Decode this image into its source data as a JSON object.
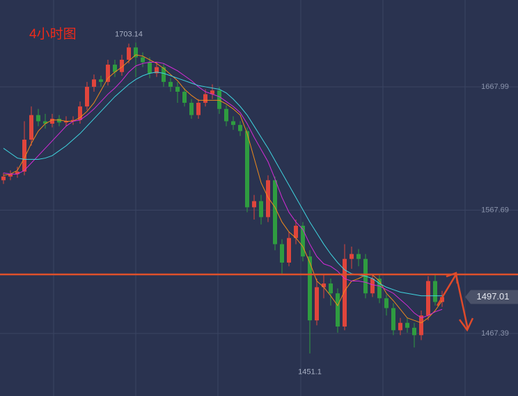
{
  "chart_data": {
    "type": "candlestick",
    "title": "4小时图",
    "ylim": [
      1416.5,
      1738.6
    ],
    "yticks": [
      1467.39,
      1567.69,
      1667.99
    ],
    "grid": true,
    "up_color": "#e0453c",
    "down_color": "#2f9c40",
    "candles": [
      [
        1592,
        1598,
        1589,
        1595
      ],
      [
        1595,
        1600,
        1592,
        1597
      ],
      [
        1597,
        1603,
        1594,
        1599
      ],
      [
        1599,
        1640,
        1596,
        1625
      ],
      [
        1625,
        1652,
        1620,
        1645
      ],
      [
        1645,
        1650,
        1636,
        1640
      ],
      [
        1640,
        1646,
        1634,
        1638
      ],
      [
        1638,
        1646,
        1635,
        1642
      ],
      [
        1642,
        1645,
        1636,
        1639
      ],
      [
        1639,
        1644,
        1636,
        1640
      ],
      [
        1640,
        1644,
        1637,
        1641
      ],
      [
        1641,
        1656,
        1638,
        1652
      ],
      [
        1652,
        1672,
        1649,
        1668
      ],
      [
        1668,
        1678,
        1664,
        1674
      ],
      [
        1674,
        1677,
        1668,
        1672
      ],
      [
        1672,
        1690,
        1669,
        1686
      ],
      [
        1686,
        1690,
        1676,
        1680
      ],
      [
        1680,
        1694,
        1677,
        1690
      ],
      [
        1690,
        1703.14,
        1687,
        1700
      ],
      [
        1700,
        1704,
        1676,
        1692
      ],
      [
        1692,
        1696,
        1684,
        1688
      ],
      [
        1688,
        1692,
        1675,
        1679
      ],
      [
        1679,
        1688,
        1676,
        1684
      ],
      [
        1684,
        1687,
        1668,
        1672
      ],
      [
        1672,
        1675,
        1664,
        1668
      ],
      [
        1668,
        1672,
        1655,
        1664
      ],
      [
        1664,
        1667,
        1652,
        1655
      ],
      [
        1655,
        1658,
        1642,
        1645
      ],
      [
        1645,
        1658,
        1642,
        1655
      ],
      [
        1655,
        1666,
        1652,
        1662
      ],
      [
        1662,
        1670,
        1658,
        1665
      ],
      [
        1665,
        1668,
        1646,
        1650
      ],
      [
        1650,
        1653,
        1636,
        1640
      ],
      [
        1640,
        1644,
        1633,
        1637
      ],
      [
        1637,
        1640,
        1628,
        1632
      ],
      [
        1632,
        1635,
        1566,
        1570
      ],
      [
        1570,
        1580,
        1560,
        1575
      ],
      [
        1575,
        1580,
        1556,
        1562
      ],
      [
        1562,
        1596,
        1558,
        1592
      ],
      [
        1592,
        1595,
        1535,
        1540
      ],
      [
        1540,
        1544,
        1515,
        1525
      ],
      [
        1525,
        1550,
        1522,
        1545
      ],
      [
        1545,
        1560,
        1540,
        1555
      ],
      [
        1555,
        1558,
        1526,
        1530
      ],
      [
        1530,
        1535,
        1451.1,
        1478
      ],
      [
        1478,
        1512,
        1474,
        1505
      ],
      [
        1505,
        1515,
        1496,
        1508
      ],
      [
        1508,
        1512,
        1490,
        1500
      ],
      [
        1500,
        1504,
        1468,
        1473
      ],
      [
        1473,
        1540,
        1470,
        1528
      ],
      [
        1528,
        1538,
        1520,
        1532
      ],
      [
        1532,
        1536,
        1522,
        1528
      ],
      [
        1528,
        1532,
        1496,
        1500
      ],
      [
        1500,
        1516,
        1497,
        1512
      ],
      [
        1512,
        1515,
        1492,
        1496
      ],
      [
        1496,
        1499,
        1482,
        1488
      ],
      [
        1488,
        1492,
        1466,
        1470
      ],
      [
        1470,
        1480,
        1466,
        1476
      ],
      [
        1476,
        1480,
        1468,
        1472
      ],
      [
        1472,
        1476,
        1456,
        1466
      ],
      [
        1466,
        1486,
        1462,
        1482
      ],
      [
        1482,
        1514,
        1478,
        1510
      ],
      [
        1510,
        1516,
        1490,
        1493
      ],
      [
        1493,
        1502,
        1489,
        1497.01
      ]
    ],
    "series": [
      {
        "color": "#f08a1c",
        "values": [
          1596,
          1597,
          1600,
          1610,
          1622,
          1632,
          1638,
          1641,
          1641,
          1640,
          1640,
          1643,
          1648,
          1655,
          1665,
          1675,
          1680,
          1684,
          1689,
          1694,
          1693,
          1690,
          1687,
          1683,
          1678,
          1673,
          1666,
          1661,
          1657,
          1657,
          1657,
          1657,
          1654,
          1650,
          1645,
          1630,
          1610,
          1590,
          1578,
          1570,
          1558,
          1550,
          1545,
          1538,
          1525,
          1510,
          1505,
          1498,
          1490,
          1502,
          1510,
          1512,
          1515,
          1515,
          1510,
          1500,
          1494,
          1487,
          1480,
          1478,
          1476,
          1480,
          1486,
          1494
        ]
      },
      {
        "color": "#d62bd8",
        "values": [
          1598,
          1597,
          1597,
          1600,
          1606,
          1612,
          1618,
          1624,
          1630,
          1636,
          1640,
          1641,
          1645,
          1650,
          1656,
          1662,
          1667,
          1673,
          1680,
          1685,
          1687,
          1688,
          1688,
          1687,
          1684,
          1681,
          1677,
          1673,
          1668,
          1664,
          1662,
          1660,
          1656,
          1652,
          1647,
          1638,
          1627,
          1617,
          1607,
          1593,
          1578,
          1566,
          1558,
          1552,
          1540,
          1530,
          1524,
          1522,
          1518,
          1512,
          1510,
          1510,
          1509,
          1507,
          1506,
          1503,
          1500,
          1495,
          1490,
          1484,
          1480,
          1482,
          1485,
          1487
        ]
      },
      {
        "color": "#3fd6e0",
        "values": [
          1618,
          1614,
          1610,
          1609,
          1609,
          1609,
          1610,
          1612,
          1616,
          1620,
          1625,
          1630,
          1636,
          1642,
          1648,
          1654,
          1660,
          1665,
          1670,
          1674,
          1677,
          1679,
          1680,
          1679,
          1677,
          1675,
          1673,
          1671,
          1669,
          1668,
          1667,
          1666,
          1663,
          1658,
          1652,
          1645,
          1636,
          1627,
          1618,
          1608,
          1598,
          1588,
          1578,
          1568,
          1558,
          1549,
          1540,
          1532,
          1525,
          1519,
          1516,
          1515,
          1514,
          1512,
          1508,
          1505,
          1503,
          1501,
          1500,
          1499,
          1498,
          1498,
          1498,
          1498
        ]
      }
    ],
    "hline": {
      "value": 1515.4,
      "color": "#e0502a"
    },
    "labels": {
      "high": 1703.14,
      "low": 1451.1,
      "last": 1497.01
    }
  }
}
